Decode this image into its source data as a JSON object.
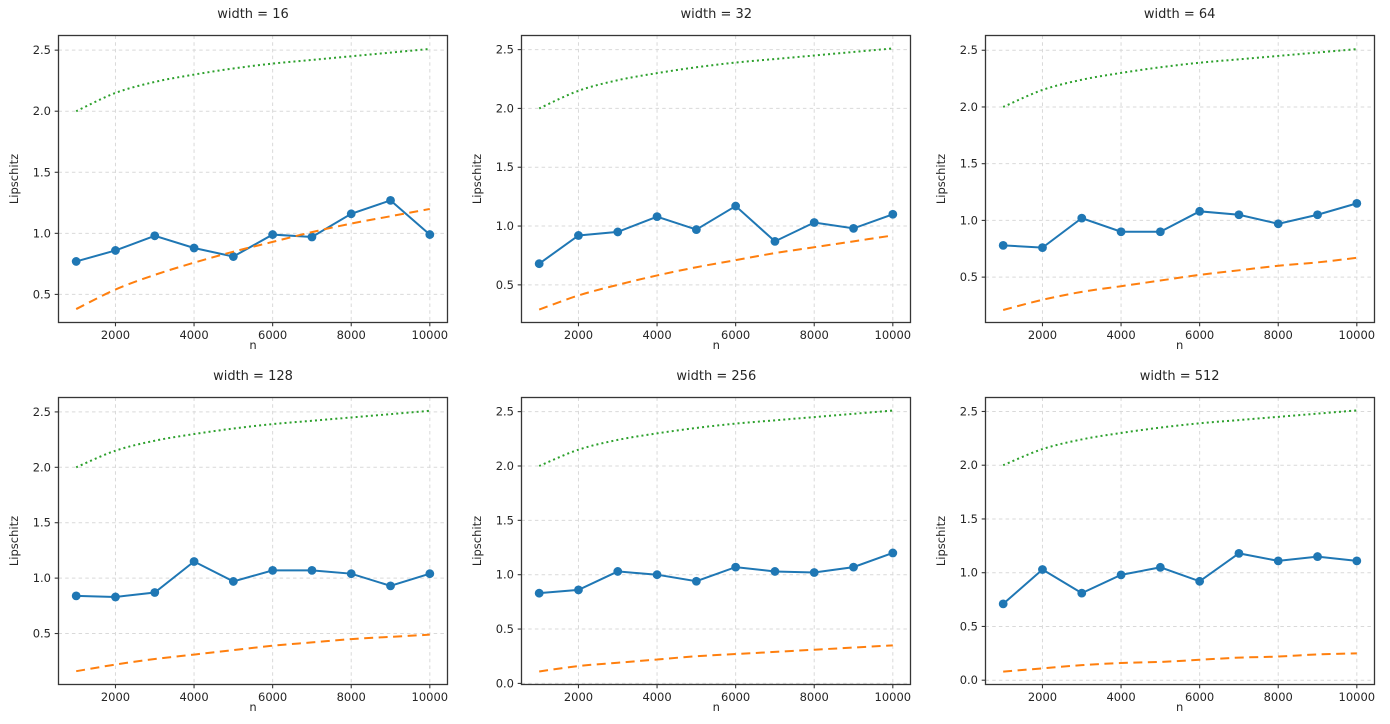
{
  "figure": {
    "background": "#ffffff",
    "xlabel": "n",
    "ylabel": "Lipschitz"
  },
  "colors": {
    "blue_series": "#1f77b4",
    "orange_dashed": "#ff7f0e",
    "green_dotted": "#2ca02c",
    "grid": "#d9d9d9",
    "spine": "#363636",
    "text": "#262626"
  },
  "chart_data": [
    {
      "type": "line",
      "title": "width = 16",
      "xlabel": "n",
      "ylabel": "Lipschitz",
      "x": [
        1000,
        2000,
        3000,
        4000,
        5000,
        6000,
        7000,
        8000,
        9000,
        10000
      ],
      "xlim": [
        550,
        10450
      ],
      "ylim": [
        0.27,
        2.62
      ],
      "xticks": [
        2000,
        4000,
        6000,
        8000,
        10000
      ],
      "yticks": [
        0.5,
        1.0,
        1.5,
        2.0,
        2.5
      ],
      "grid": true,
      "legend": false,
      "series": [
        {
          "name": "blue-solid-markers",
          "style": "solid",
          "marker": "circle",
          "color": "#1f77b4",
          "values": [
            0.77,
            0.86,
            0.98,
            0.88,
            0.81,
            0.99,
            0.97,
            1.16,
            1.27,
            0.99
          ]
        },
        {
          "name": "orange-dashed",
          "style": "dashed",
          "marker": "none",
          "color": "#ff7f0e",
          "values": [
            0.38,
            0.54,
            0.66,
            0.76,
            0.85,
            0.93,
            1.01,
            1.08,
            1.14,
            1.2
          ]
        },
        {
          "name": "green-dotted",
          "style": "dotted",
          "marker": "none",
          "color": "#2ca02c",
          "values": [
            2.0,
            2.15,
            2.24,
            2.3,
            2.35,
            2.39,
            2.42,
            2.45,
            2.48,
            2.51
          ]
        }
      ]
    },
    {
      "type": "line",
      "title": "width = 32",
      "xlabel": "n",
      "ylabel": "Lipschitz",
      "x": [
        1000,
        2000,
        3000,
        4000,
        5000,
        6000,
        7000,
        8000,
        9000,
        10000
      ],
      "xlim": [
        550,
        10450
      ],
      "ylim": [
        0.18,
        2.62
      ],
      "xticks": [
        2000,
        4000,
        6000,
        8000,
        10000
      ],
      "yticks": [
        0.5,
        1.0,
        1.5,
        2.0,
        2.5
      ],
      "grid": true,
      "legend": false,
      "series": [
        {
          "name": "blue-solid-markers",
          "style": "solid",
          "marker": "circle",
          "color": "#1f77b4",
          "values": [
            0.68,
            0.92,
            0.95,
            1.08,
            0.97,
            1.17,
            0.87,
            1.03,
            0.98,
            1.1
          ]
        },
        {
          "name": "orange-dashed",
          "style": "dashed",
          "marker": "none",
          "color": "#ff7f0e",
          "values": [
            0.29,
            0.41,
            0.5,
            0.58,
            0.65,
            0.71,
            0.77,
            0.82,
            0.87,
            0.92
          ]
        },
        {
          "name": "green-dotted",
          "style": "dotted",
          "marker": "none",
          "color": "#2ca02c",
          "values": [
            2.0,
            2.15,
            2.24,
            2.3,
            2.35,
            2.39,
            2.42,
            2.45,
            2.48,
            2.51
          ]
        }
      ]
    },
    {
      "type": "line",
      "title": "width = 64",
      "xlabel": "n",
      "ylabel": "Lipschitz",
      "x": [
        1000,
        2000,
        3000,
        4000,
        5000,
        6000,
        7000,
        8000,
        9000,
        10000
      ],
      "xlim": [
        550,
        10450
      ],
      "ylim": [
        0.1,
        2.63
      ],
      "xticks": [
        2000,
        4000,
        6000,
        8000,
        10000
      ],
      "yticks": [
        0.5,
        1.0,
        1.5,
        2.0,
        2.5
      ],
      "grid": true,
      "legend": false,
      "series": [
        {
          "name": "blue-solid-markers",
          "style": "solid",
          "marker": "circle",
          "color": "#1f77b4",
          "values": [
            0.78,
            0.76,
            1.02,
            0.9,
            0.9,
            1.08,
            1.05,
            0.97,
            1.05,
            1.15
          ]
        },
        {
          "name": "orange-dashed",
          "style": "dashed",
          "marker": "none",
          "color": "#ff7f0e",
          "values": [
            0.21,
            0.3,
            0.37,
            0.42,
            0.47,
            0.52,
            0.56,
            0.6,
            0.63,
            0.67
          ]
        },
        {
          "name": "green-dotted",
          "style": "dotted",
          "marker": "none",
          "color": "#2ca02c",
          "values": [
            2.0,
            2.15,
            2.24,
            2.3,
            2.35,
            2.39,
            2.42,
            2.45,
            2.48,
            2.51
          ]
        }
      ]
    },
    {
      "type": "line",
      "title": "width = 128",
      "xlabel": "n",
      "ylabel": "Lipschitz",
      "x": [
        1000,
        2000,
        3000,
        4000,
        5000,
        6000,
        7000,
        8000,
        9000,
        10000
      ],
      "xlim": [
        550,
        10450
      ],
      "ylim": [
        0.04,
        2.63
      ],
      "xticks": [
        2000,
        4000,
        6000,
        8000,
        10000
      ],
      "yticks": [
        0.5,
        1.0,
        1.5,
        2.0,
        2.5
      ],
      "grid": true,
      "legend": false,
      "series": [
        {
          "name": "blue-solid-markers",
          "style": "solid",
          "marker": "circle",
          "color": "#1f77b4",
          "values": [
            0.84,
            0.83,
            0.87,
            1.15,
            0.97,
            1.07,
            1.07,
            1.04,
            0.93,
            1.04
          ]
        },
        {
          "name": "orange-dashed",
          "style": "dashed",
          "marker": "none",
          "color": "#ff7f0e",
          "values": [
            0.16,
            0.22,
            0.27,
            0.31,
            0.35,
            0.39,
            0.42,
            0.45,
            0.47,
            0.49
          ]
        },
        {
          "name": "green-dotted",
          "style": "dotted",
          "marker": "none",
          "color": "#2ca02c",
          "values": [
            2.0,
            2.15,
            2.24,
            2.3,
            2.35,
            2.39,
            2.42,
            2.45,
            2.48,
            2.51
          ]
        }
      ]
    },
    {
      "type": "line",
      "title": "width = 256",
      "xlabel": "n",
      "ylabel": "Lipschitz",
      "x": [
        1000,
        2000,
        3000,
        4000,
        5000,
        6000,
        7000,
        8000,
        9000,
        10000
      ],
      "xlim": [
        550,
        10450
      ],
      "ylim": [
        -0.01,
        2.63
      ],
      "xticks": [
        2000,
        4000,
        6000,
        8000,
        10000
      ],
      "yticks": [
        0.0,
        0.5,
        1.0,
        1.5,
        2.0,
        2.5
      ],
      "grid": true,
      "legend": false,
      "series": [
        {
          "name": "blue-solid-markers",
          "style": "solid",
          "marker": "circle",
          "color": "#1f77b4",
          "values": [
            0.83,
            0.86,
            1.03,
            1.0,
            0.94,
            1.07,
            1.03,
            1.02,
            1.07,
            1.2
          ]
        },
        {
          "name": "orange-dashed",
          "style": "dashed",
          "marker": "none",
          "color": "#ff7f0e",
          "values": [
            0.11,
            0.16,
            0.19,
            0.22,
            0.25,
            0.27,
            0.29,
            0.31,
            0.33,
            0.35
          ]
        },
        {
          "name": "green-dotted",
          "style": "dotted",
          "marker": "none",
          "color": "#2ca02c",
          "values": [
            2.0,
            2.15,
            2.24,
            2.3,
            2.35,
            2.39,
            2.42,
            2.45,
            2.48,
            2.51
          ]
        }
      ]
    },
    {
      "type": "line",
      "title": "width = 512",
      "xlabel": "n",
      "ylabel": "Lipschitz",
      "x": [
        1000,
        2000,
        3000,
        4000,
        5000,
        6000,
        7000,
        8000,
        9000,
        10000
      ],
      "xlim": [
        550,
        10450
      ],
      "ylim": [
        -0.04,
        2.63
      ],
      "xticks": [
        2000,
        4000,
        6000,
        8000,
        10000
      ],
      "yticks": [
        0.0,
        0.5,
        1.0,
        1.5,
        2.0,
        2.5
      ],
      "grid": true,
      "legend": false,
      "series": [
        {
          "name": "blue-solid-markers",
          "style": "solid",
          "marker": "circle",
          "color": "#1f77b4",
          "values": [
            0.71,
            1.03,
            0.81,
            0.98,
            1.05,
            0.92,
            1.18,
            1.11,
            1.15,
            1.11
          ]
        },
        {
          "name": "orange-dashed",
          "style": "dashed",
          "marker": "none",
          "color": "#ff7f0e",
          "values": [
            0.08,
            0.11,
            0.14,
            0.16,
            0.17,
            0.19,
            0.21,
            0.22,
            0.24,
            0.25
          ]
        },
        {
          "name": "green-dotted",
          "style": "dotted",
          "marker": "none",
          "color": "#2ca02c",
          "values": [
            2.0,
            2.15,
            2.24,
            2.3,
            2.35,
            2.39,
            2.42,
            2.45,
            2.48,
            2.51
          ]
        }
      ]
    }
  ]
}
